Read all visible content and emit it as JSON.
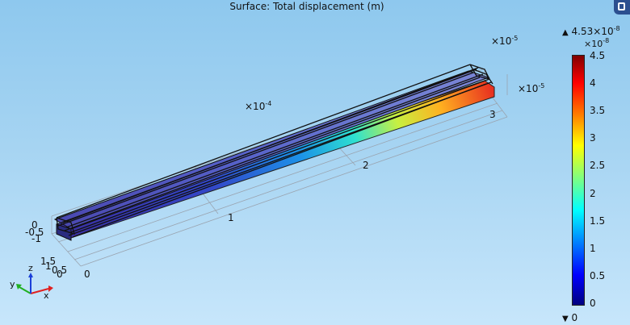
{
  "plot": {
    "title": "Surface: Total displacement (m)"
  },
  "axes": {
    "x_multiplier": "×10",
    "x_multiplier_exp": "-4",
    "x_ticks": [
      "0",
      "1",
      "2",
      "3"
    ],
    "y_multiplier": "×10",
    "y_multiplier_exp": "-5",
    "y_ticks": [
      "0",
      "0.5",
      "1",
      "1.5"
    ],
    "z_multiplier": "×10",
    "z_multiplier_exp": "-5",
    "z_ticks": [
      "0",
      "-0.5",
      "-1"
    ]
  },
  "triad": {
    "x_label": "x",
    "y_label": "y",
    "z_label": "z",
    "x_color": "#e02020",
    "y_color": "#20b020",
    "z_color": "#1a3fd9"
  },
  "colorbar": {
    "max_value": "4.53×10",
    "max_exp": "-8",
    "min_value": "0",
    "scale_label": "×10",
    "scale_exp": "-8",
    "ticks": [
      "4.5",
      "4",
      "3.5",
      "3",
      "2.5",
      "2",
      "1.5",
      "1",
      "0.5",
      "0"
    ],
    "colormap": "Rainbow"
  },
  "chart_data": {
    "type": "heatmap",
    "title": "Surface: Total displacement (m)",
    "color_range": [
      0,
      4.53e-08
    ],
    "colorbar_ticks": [
      4.5,
      4,
      3.5,
      3,
      2.5,
      2,
      1.5,
      1,
      0.5,
      0
    ],
    "x_ticks": [
      0,
      1,
      2,
      3
    ],
    "y_ticks": [
      0,
      0.5,
      1,
      1.5
    ],
    "z_ticks": [
      0,
      -0.5,
      -1
    ],
    "x_scale": "1e-4",
    "y_scale": "1e-5",
    "z_scale": "1e-5"
  }
}
